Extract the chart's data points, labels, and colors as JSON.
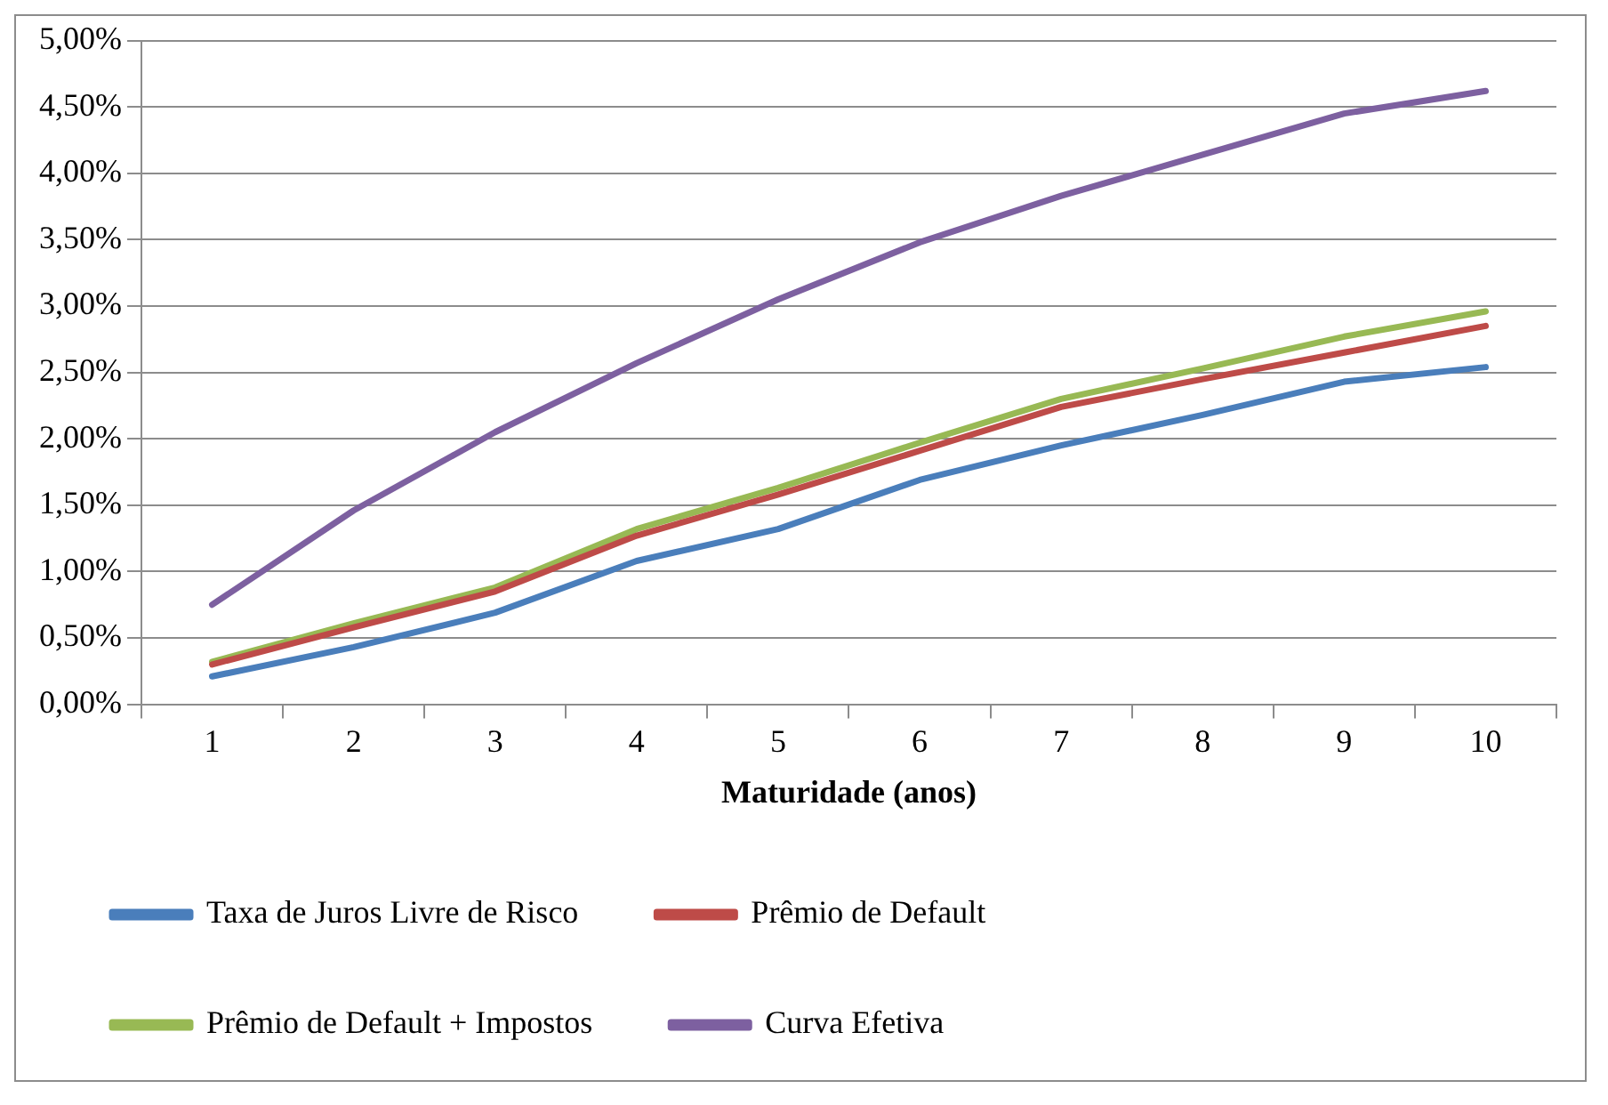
{
  "chart_data": {
    "type": "line",
    "xlabel": "Maturidade (anos)",
    "categories": [
      "1",
      "2",
      "3",
      "4",
      "5",
      "6",
      "7",
      "8",
      "9",
      "10"
    ],
    "series": [
      {
        "name": "Taxa de Juros Livre de Risco",
        "color": "#4a7ebb",
        "values": [
          0.21,
          0.43,
          0.69,
          1.08,
          1.32,
          1.69,
          1.95,
          2.18,
          2.43,
          2.54
        ]
      },
      {
        "name": "Prêmio de Default",
        "color": "#be4b48",
        "values": [
          0.3,
          0.58,
          0.85,
          1.27,
          1.58,
          1.91,
          2.24,
          2.45,
          2.65,
          2.85
        ]
      },
      {
        "name": "Prêmio de Default + Impostos",
        "color": "#98b954",
        "values": [
          0.32,
          0.61,
          0.88,
          1.32,
          1.63,
          1.97,
          2.3,
          2.53,
          2.77,
          2.96
        ]
      },
      {
        "name": "Curva Efetiva",
        "color": "#7d60a0",
        "values": [
          0.75,
          1.46,
          2.05,
          2.57,
          3.05,
          3.48,
          3.83,
          4.14,
          4.45,
          4.62
        ]
      }
    ],
    "ylim": [
      0,
      5
    ],
    "yticks": [
      {
        "value": 0,
        "label": "0,00%"
      },
      {
        "value": 0.5,
        "label": "0,50%"
      },
      {
        "value": 1,
        "label": "1,00%"
      },
      {
        "value": 1.5,
        "label": "1,50%"
      },
      {
        "value": 2,
        "label": "2,00%"
      },
      {
        "value": 2.5,
        "label": "2,50%"
      },
      {
        "value": 3,
        "label": "3,00%"
      },
      {
        "value": 3.5,
        "label": "3,50%"
      },
      {
        "value": 4,
        "label": "4,00%"
      },
      {
        "value": 4.5,
        "label": "4,50%"
      },
      {
        "value": 5,
        "label": "5,00%"
      }
    ],
    "grid": "y",
    "legend": "bottom",
    "marker": "none",
    "line_style": "solid"
  }
}
